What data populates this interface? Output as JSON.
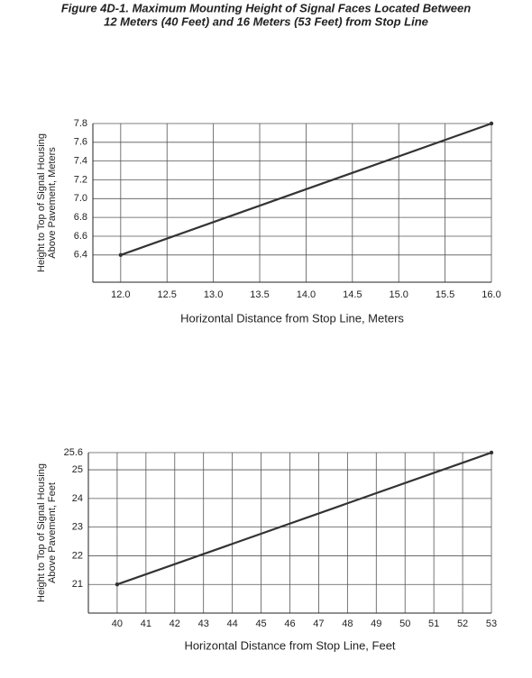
{
  "title": [
    "Figure 4D-1.  Maximum Mounting Height of Signal Faces Located Between",
    "12 Meters (40 Feet) and 16 Meters (53 Feet) from Stop Line"
  ],
  "chart_data": [
    {
      "type": "line",
      "xlabel": "Horizontal Distance from Stop Line, Meters",
      "ylabel": [
        "Height to Top of Signal Housing",
        "Above Pavement, Meters"
      ],
      "x": [
        12,
        16
      ],
      "values": [
        6.4,
        7.8
      ],
      "color": "#333333",
      "xlim": [
        11.7,
        16
      ],
      "ylim": [
        6.11,
        7.8
      ],
      "grid": true,
      "xticks": [
        {
          "value": 12,
          "label": "12.0"
        },
        12.5,
        {
          "value": 13,
          "label": "13.0"
        },
        13.5,
        {
          "value": 14,
          "label": "14.0"
        },
        14.5,
        {
          "value": 15,
          "label": "15.0"
        },
        15.5,
        {
          "value": 16,
          "label": "16.0"
        }
      ],
      "yticks": [
        6.4,
        6.6,
        6.8,
        {
          "value": 7,
          "label": "7.0"
        },
        7.2,
        7.4,
        7.6,
        7.8
      ]
    },
    {
      "type": "line",
      "xlabel": "Horizontal Distance from Stop Line, Feet",
      "ylabel": [
        "Height to Top of Signal Housing",
        "Above Pavement, Feet"
      ],
      "x": [
        40,
        53
      ],
      "values": [
        21,
        25.6
      ],
      "color": "#333333",
      "xlim": [
        39,
        53
      ],
      "ylim": [
        20,
        25.6
      ],
      "grid": true,
      "xticks": [
        40,
        41,
        42,
        43,
        44,
        45,
        46,
        47,
        48,
        49,
        50,
        51,
        52,
        53
      ],
      "yticks": [
        21,
        22,
        23,
        24,
        25,
        25.6
      ]
    }
  ]
}
